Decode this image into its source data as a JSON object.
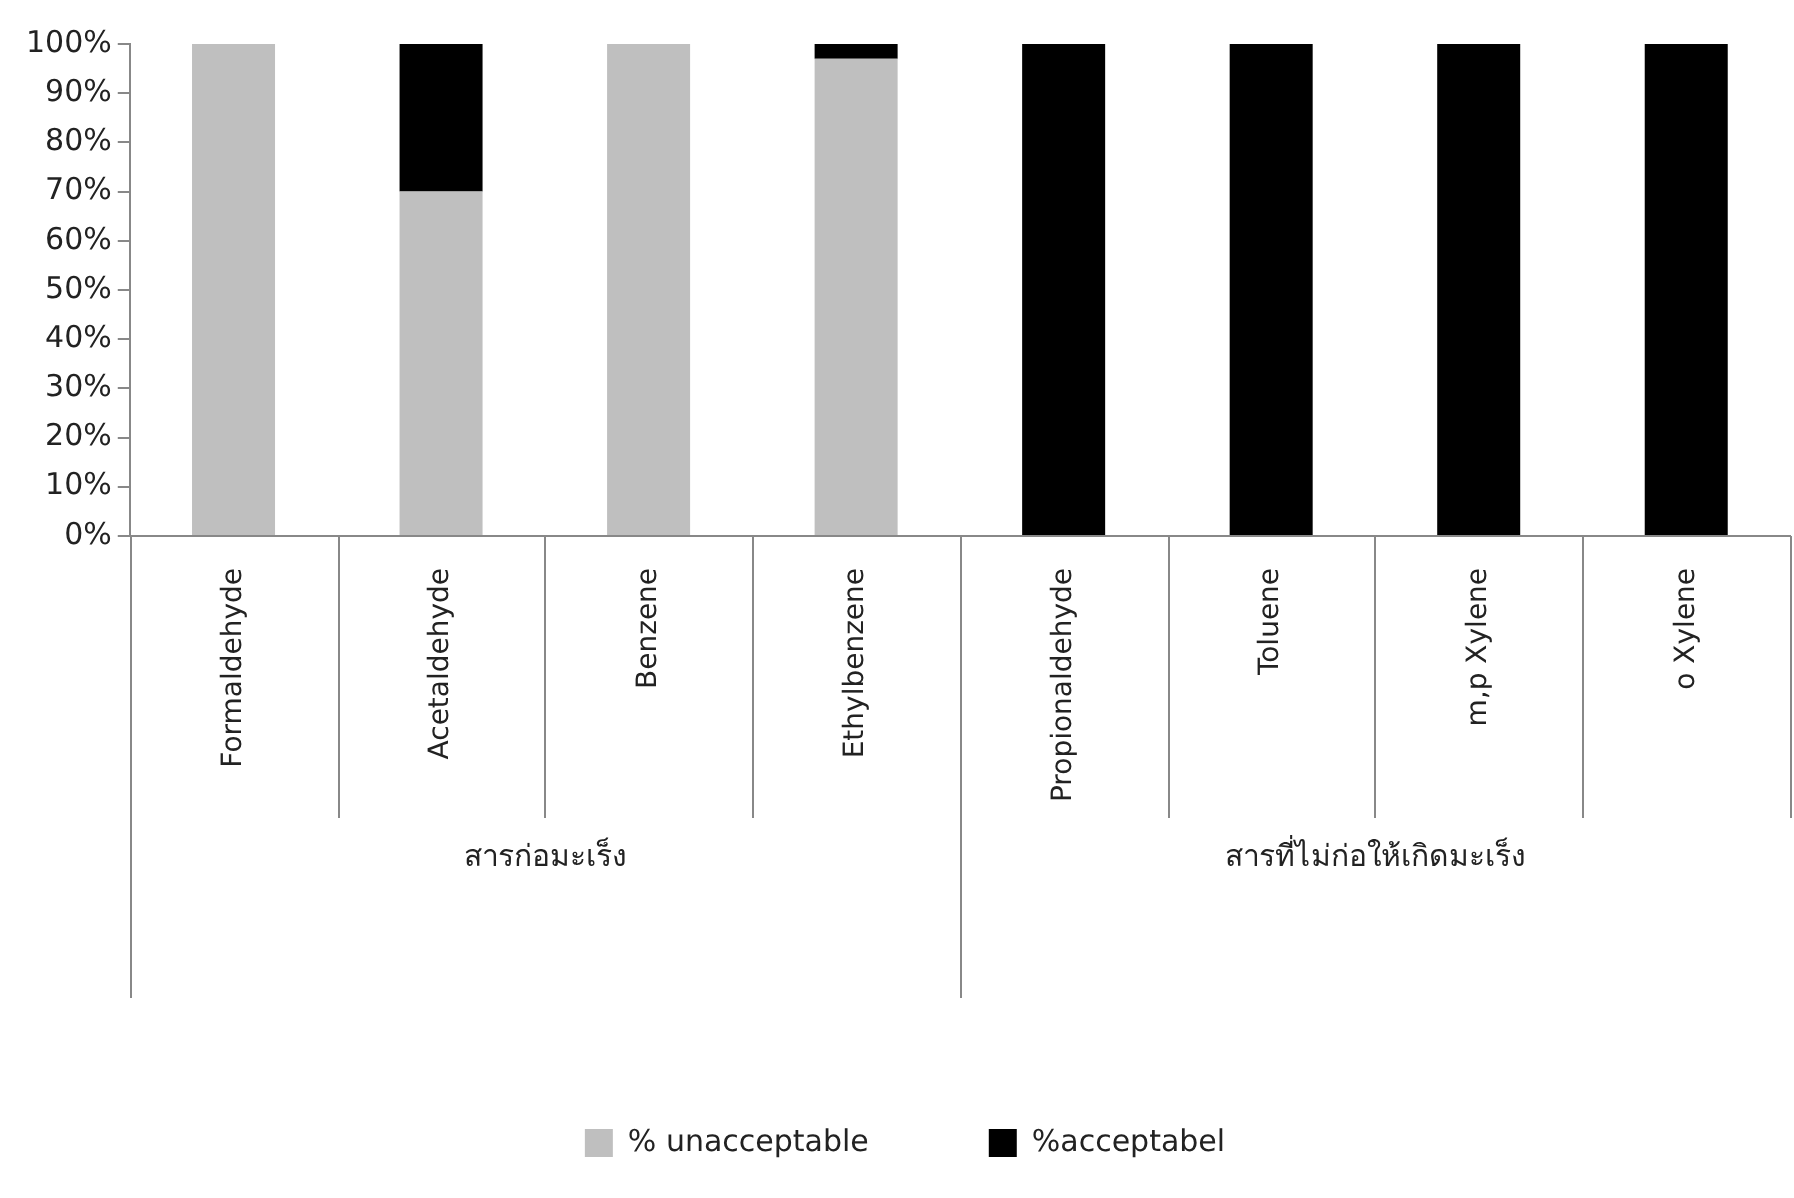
{
  "chart_data": {
    "type": "bar",
    "stacked": true,
    "categories": [
      "Formaldehyde",
      "Acetaldehyde",
      "Benzene",
      "Ethylbenzene",
      "Propionaldehyde",
      "Toluene",
      "m,p Xylene",
      "o Xylene"
    ],
    "series": [
      {
        "name": "% unacceptable",
        "color": "#bfbfbf",
        "values": [
          100,
          70,
          100,
          97,
          0,
          0,
          0,
          0
        ]
      },
      {
        "name": "%acceptabel",
        "color": "#000000",
        "values": [
          0,
          30,
          0,
          3,
          100,
          100,
          100,
          100
        ]
      }
    ],
    "ylim": [
      0,
      100
    ],
    "yticks": [
      {
        "value": 0,
        "label": "0%"
      },
      {
        "value": 10,
        "label": "10%"
      },
      {
        "value": 20,
        "label": "20%"
      },
      {
        "value": 30,
        "label": "30%"
      },
      {
        "value": 40,
        "label": "40%"
      },
      {
        "value": 50,
        "label": "50%"
      },
      {
        "value": 60,
        "label": "60%"
      },
      {
        "value": 70,
        "label": "70%"
      },
      {
        "value": 80,
        "label": "80%"
      },
      {
        "value": 90,
        "label": "90%"
      },
      {
        "value": 100,
        "label": "100%"
      }
    ],
    "annotations": [
      "สารก่อมะเร็ง",
      "สารที่ไม่ก่อให้เกิดมะเร็ง"
    ],
    "legend": "bottom"
  }
}
